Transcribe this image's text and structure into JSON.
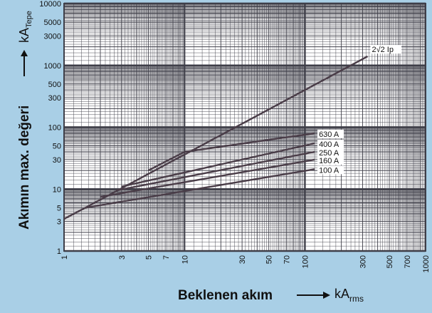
{
  "chart_data": {
    "type": "line",
    "xscale": "log",
    "yscale": "log",
    "xlim": [
      1,
      1000
    ],
    "ylim": [
      1,
      10000
    ],
    "grid": true,
    "xlabel": "Beklenen akım",
    "xunit_main": "kA",
    "xunit_sub": "rms",
    "ylabel": "Akımın max. değeri",
    "yunit_main": "kA",
    "yunit_sub": "Tepe",
    "x_ticks": [
      "1",
      "3",
      "5",
      "7",
      "10",
      "30",
      "50",
      "70",
      "100",
      "300",
      "500",
      "700",
      "1000"
    ],
    "x_tick_values": [
      1,
      3,
      5,
      7,
      10,
      30,
      50,
      70,
      100,
      300,
      500,
      700,
      1000
    ],
    "y_ticks": [
      "1",
      "3",
      "5",
      "10",
      "30",
      "50",
      "100",
      "300",
      "500",
      "1000",
      "3000",
      "5000",
      "10000"
    ],
    "y_tick_values": [
      1,
      3,
      5,
      10,
      30,
      50,
      100,
      300,
      500,
      1000,
      3000,
      5000,
      10000
    ],
    "series": [
      {
        "name": "2√2 Ip",
        "x": [
          1,
          1.5,
          330
        ],
        "y": [
          3.3,
          5,
          1400
        ]
      },
      {
        "name": "630 A",
        "x": [
          5,
          10,
          120
        ],
        "y": [
          20,
          40,
          80
        ]
      },
      {
        "name": "400 A",
        "x": [
          3,
          120
        ],
        "y": [
          11,
          55
        ]
      },
      {
        "name": "250 A",
        "x": [
          2.7,
          120
        ],
        "y": [
          9.5,
          40
        ]
      },
      {
        "name": "160 A",
        "x": [
          2,
          120
        ],
        "y": [
          7.5,
          30
        ]
      },
      {
        "name": "100 A",
        "x": [
          1.5,
          120
        ],
        "y": [
          5,
          21
        ]
      }
    ]
  },
  "colors": {
    "background": "#a9cfe6",
    "plot_area": "#ffffff",
    "grid": "#3e3e48",
    "curve": "#4a3d48",
    "text": "#111111"
  }
}
